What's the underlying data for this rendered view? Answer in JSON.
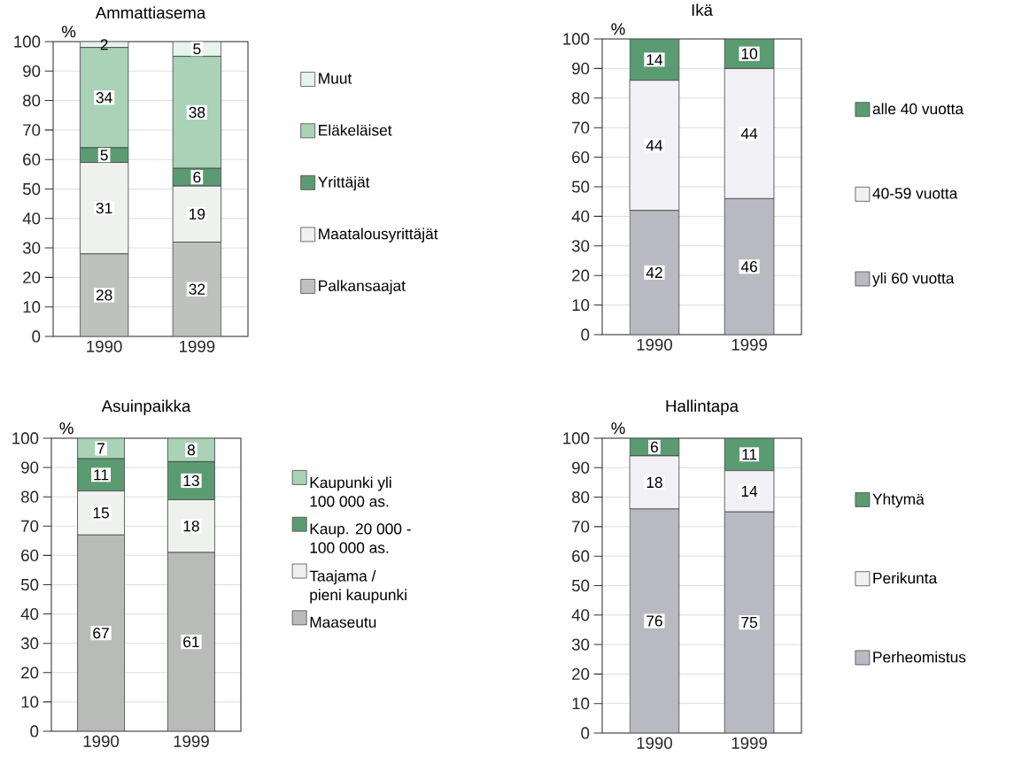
{
  "chart_data": [
    {
      "type": "bar",
      "title": "Ammattiasema",
      "ylabel": "%",
      "categories": [
        "1990",
        "1999"
      ],
      "stacked": true,
      "ylim": [
        0,
        100
      ],
      "yticks": [
        0,
        10,
        20,
        30,
        40,
        50,
        60,
        70,
        80,
        90,
        100
      ],
      "grid": "y",
      "legend": "right",
      "data_labels": true,
      "series": [
        {
          "name": "Palkansaajat",
          "color": "#bfc1bf",
          "values": [
            28,
            32
          ]
        },
        {
          "name": "Maatalousyrittäjät",
          "color": "#eef1ee",
          "values": [
            31,
            19
          ]
        },
        {
          "name": "Yrittäjät",
          "color": "#5b9b72",
          "values": [
            5,
            6
          ]
        },
        {
          "name": "Eläkeläiset",
          "color": "#a9d2b7",
          "values": [
            34,
            38
          ]
        },
        {
          "name": "Muut",
          "color": "#e6f4ec",
          "values": [
            2,
            5
          ]
        }
      ]
    },
    {
      "type": "bar",
      "title": "Ikä",
      "ylabel": "%",
      "categories": [
        "1990",
        "1999"
      ],
      "stacked": true,
      "ylim": [
        0,
        100
      ],
      "yticks": [
        0,
        10,
        20,
        30,
        40,
        50,
        60,
        70,
        80,
        90,
        100
      ],
      "grid": "y",
      "legend": "right",
      "data_labels": true,
      "series": [
        {
          "name": "yli 60 vuotta",
          "color": "#b9b9c2",
          "values": [
            42,
            46
          ]
        },
        {
          "name": "40-59 vuotta",
          "color": "#f1f1f5",
          "values": [
            44,
            44
          ]
        },
        {
          "name": "alle 40 vuotta",
          "color": "#5b9b72",
          "values": [
            14,
            10
          ]
        }
      ]
    },
    {
      "type": "bar",
      "title": "Asuinpaikka",
      "ylabel": "%",
      "categories": [
        "1990",
        "1999"
      ],
      "stacked": true,
      "ylim": [
        0,
        100
      ],
      "yticks": [
        0,
        10,
        20,
        30,
        40,
        50,
        60,
        70,
        80,
        90,
        100
      ],
      "grid": "y",
      "legend": "right",
      "data_labels": true,
      "series": [
        {
          "name": "Maaseutu",
          "color": "#b9bbb9",
          "values": [
            67,
            61
          ]
        },
        {
          "name": "Taajama / pieni kaupunki",
          "color": "#eef1ee",
          "values": [
            15,
            18
          ]
        },
        {
          "name": "Kaup. 20 000 - 100 000 as.",
          "color": "#5b9b72",
          "values": [
            11,
            13
          ]
        },
        {
          "name": "Kaupunki yli 100 000 as.",
          "color": "#a9d2b7",
          "values": [
            7,
            8
          ]
        }
      ]
    },
    {
      "type": "bar",
      "title": "Hallintapa",
      "ylabel": "%",
      "categories": [
        "1990",
        "1999"
      ],
      "stacked": true,
      "ylim": [
        0,
        100
      ],
      "yticks": [
        0,
        10,
        20,
        30,
        40,
        50,
        60,
        70,
        80,
        90,
        100
      ],
      "grid": "y",
      "legend": "right",
      "data_labels": true,
      "series": [
        {
          "name": "Perheomistus",
          "color": "#b9b9c2",
          "values": [
            76,
            75
          ]
        },
        {
          "name": "Perikunta",
          "color": "#f1f1f5",
          "values": [
            18,
            14
          ]
        },
        {
          "name": "Yhtymä",
          "color": "#5b9b72",
          "values": [
            6,
            11
          ]
        }
      ]
    }
  ]
}
